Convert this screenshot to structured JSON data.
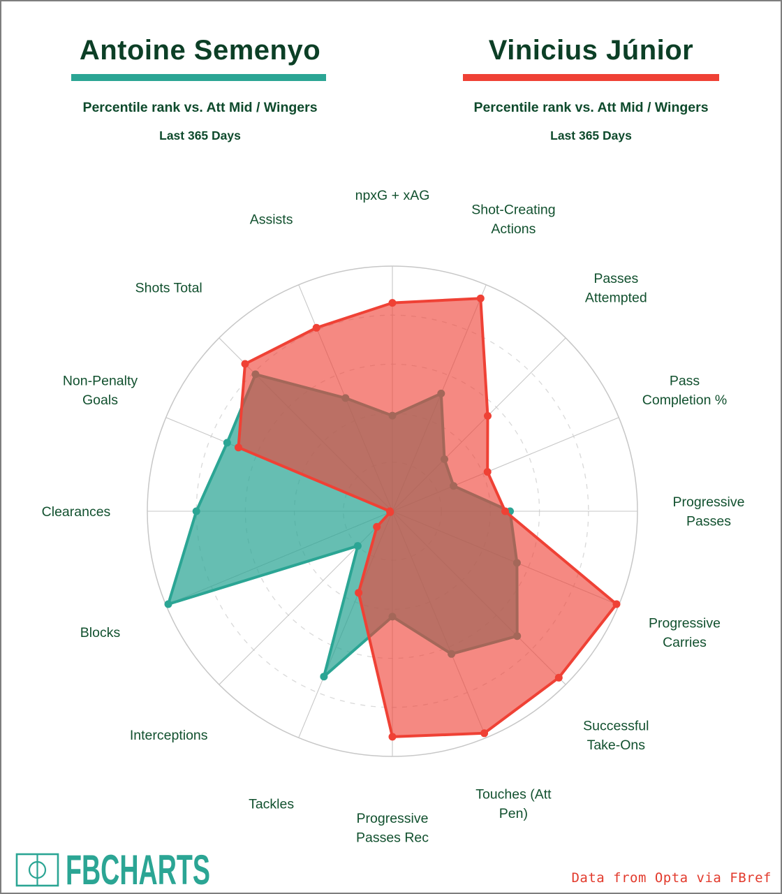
{
  "players": [
    {
      "name": "Antoine Semenyo",
      "subtitle": "Percentile rank vs. Att Mid / Wingers",
      "period": "Last 365 Days",
      "color": "#2BA594"
    },
    {
      "name": "Vinicius Júnior",
      "subtitle": "Percentile rank vs. Att Mid / Wingers",
      "period": "Last 365 Days",
      "color": "#EF4135"
    }
  ],
  "chart_data": {
    "type": "radar",
    "description": "Percentile rank (0-100) vs. Att Mid / Wingers, last 365 days; 16 axes clockwise from top",
    "categories": [
      [
        "npxG + xAG"
      ],
      [
        "Shot-Creating",
        "Actions"
      ],
      [
        "Passes",
        "Attempted"
      ],
      [
        "Pass",
        "Completion %"
      ],
      [
        "Progressive",
        "Passes"
      ],
      [
        "Progressive",
        "Carries"
      ],
      [
        "Successful",
        "Take-Ons"
      ],
      [
        "Touches (Att",
        "Pen)"
      ],
      [
        "Progressive",
        "Passes Rec"
      ],
      [
        "Tackles"
      ],
      [
        "Interceptions"
      ],
      [
        "Blocks"
      ],
      [
        "Clearances"
      ],
      [
        "Non-Penalty",
        "Goals"
      ],
      [
        "Shots Total"
      ],
      [
        "Assists"
      ]
    ],
    "series": [
      {
        "name": "Antoine Semenyo",
        "color": "#2BA594",
        "fill_opacity": 0.72,
        "values": [
          39,
          52,
          30,
          27,
          48,
          55,
          72,
          63,
          43,
          73,
          20,
          99,
          80,
          73,
          79,
          50
        ]
      },
      {
        "name": "Vinicius Júnior",
        "color": "#EF4135",
        "fill_opacity": 0.62,
        "values": [
          85,
          94,
          55,
          42,
          46,
          99,
          96,
          98,
          92,
          36,
          9,
          1,
          1,
          68,
          85,
          81
        ]
      }
    ],
    "rlim": [
      0,
      100
    ],
    "grid_rings": [
      20,
      40,
      60,
      80,
      100
    ],
    "start_angle_deg": 0,
    "direction": "clockwise",
    "grid_color": "#c7c7c7",
    "dashed_ring_color": "#d9d9d9"
  },
  "footer": {
    "logo_text": "FBCHARTS",
    "logo_color": "#2BA594",
    "credit": "Data from Opta via FBref",
    "credit_color": "#e23a2c"
  }
}
